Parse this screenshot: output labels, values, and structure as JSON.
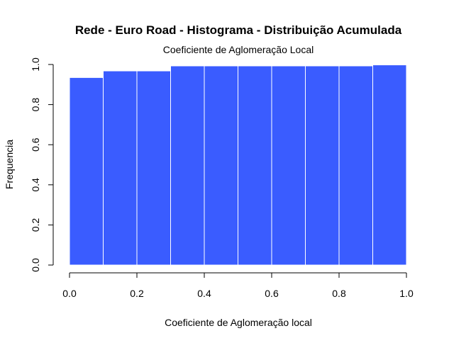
{
  "chart_data": {
    "type": "bar",
    "title": "Rede - Euro Road - Histograma - Distribuição Acumulada",
    "subtitle": "Coeficiente de Aglomeração Local",
    "xlabel": "Coeficiente de Aglomeração local",
    "ylabel": "Frequencia",
    "bin_edges": [
      0.0,
      0.1,
      0.2,
      0.3,
      0.4,
      0.5,
      0.6,
      0.7,
      0.8,
      0.9,
      1.0
    ],
    "values": [
      0.935,
      0.968,
      0.968,
      0.993,
      0.993,
      0.993,
      0.993,
      0.993,
      0.993,
      0.998
    ],
    "xlim": [
      0,
      1
    ],
    "ylim": [
      0,
      1
    ],
    "xticks": [
      "0.0",
      "0.2",
      "0.4",
      "0.6",
      "0.8",
      "1.0"
    ],
    "yticks": [
      "0.0",
      "0.2",
      "0.4",
      "0.6",
      "0.8",
      "1.0"
    ],
    "bar_color": "#3a5cff",
    "bar_border_color": "#ffffff",
    "grid": false,
    "legend": "none"
  }
}
